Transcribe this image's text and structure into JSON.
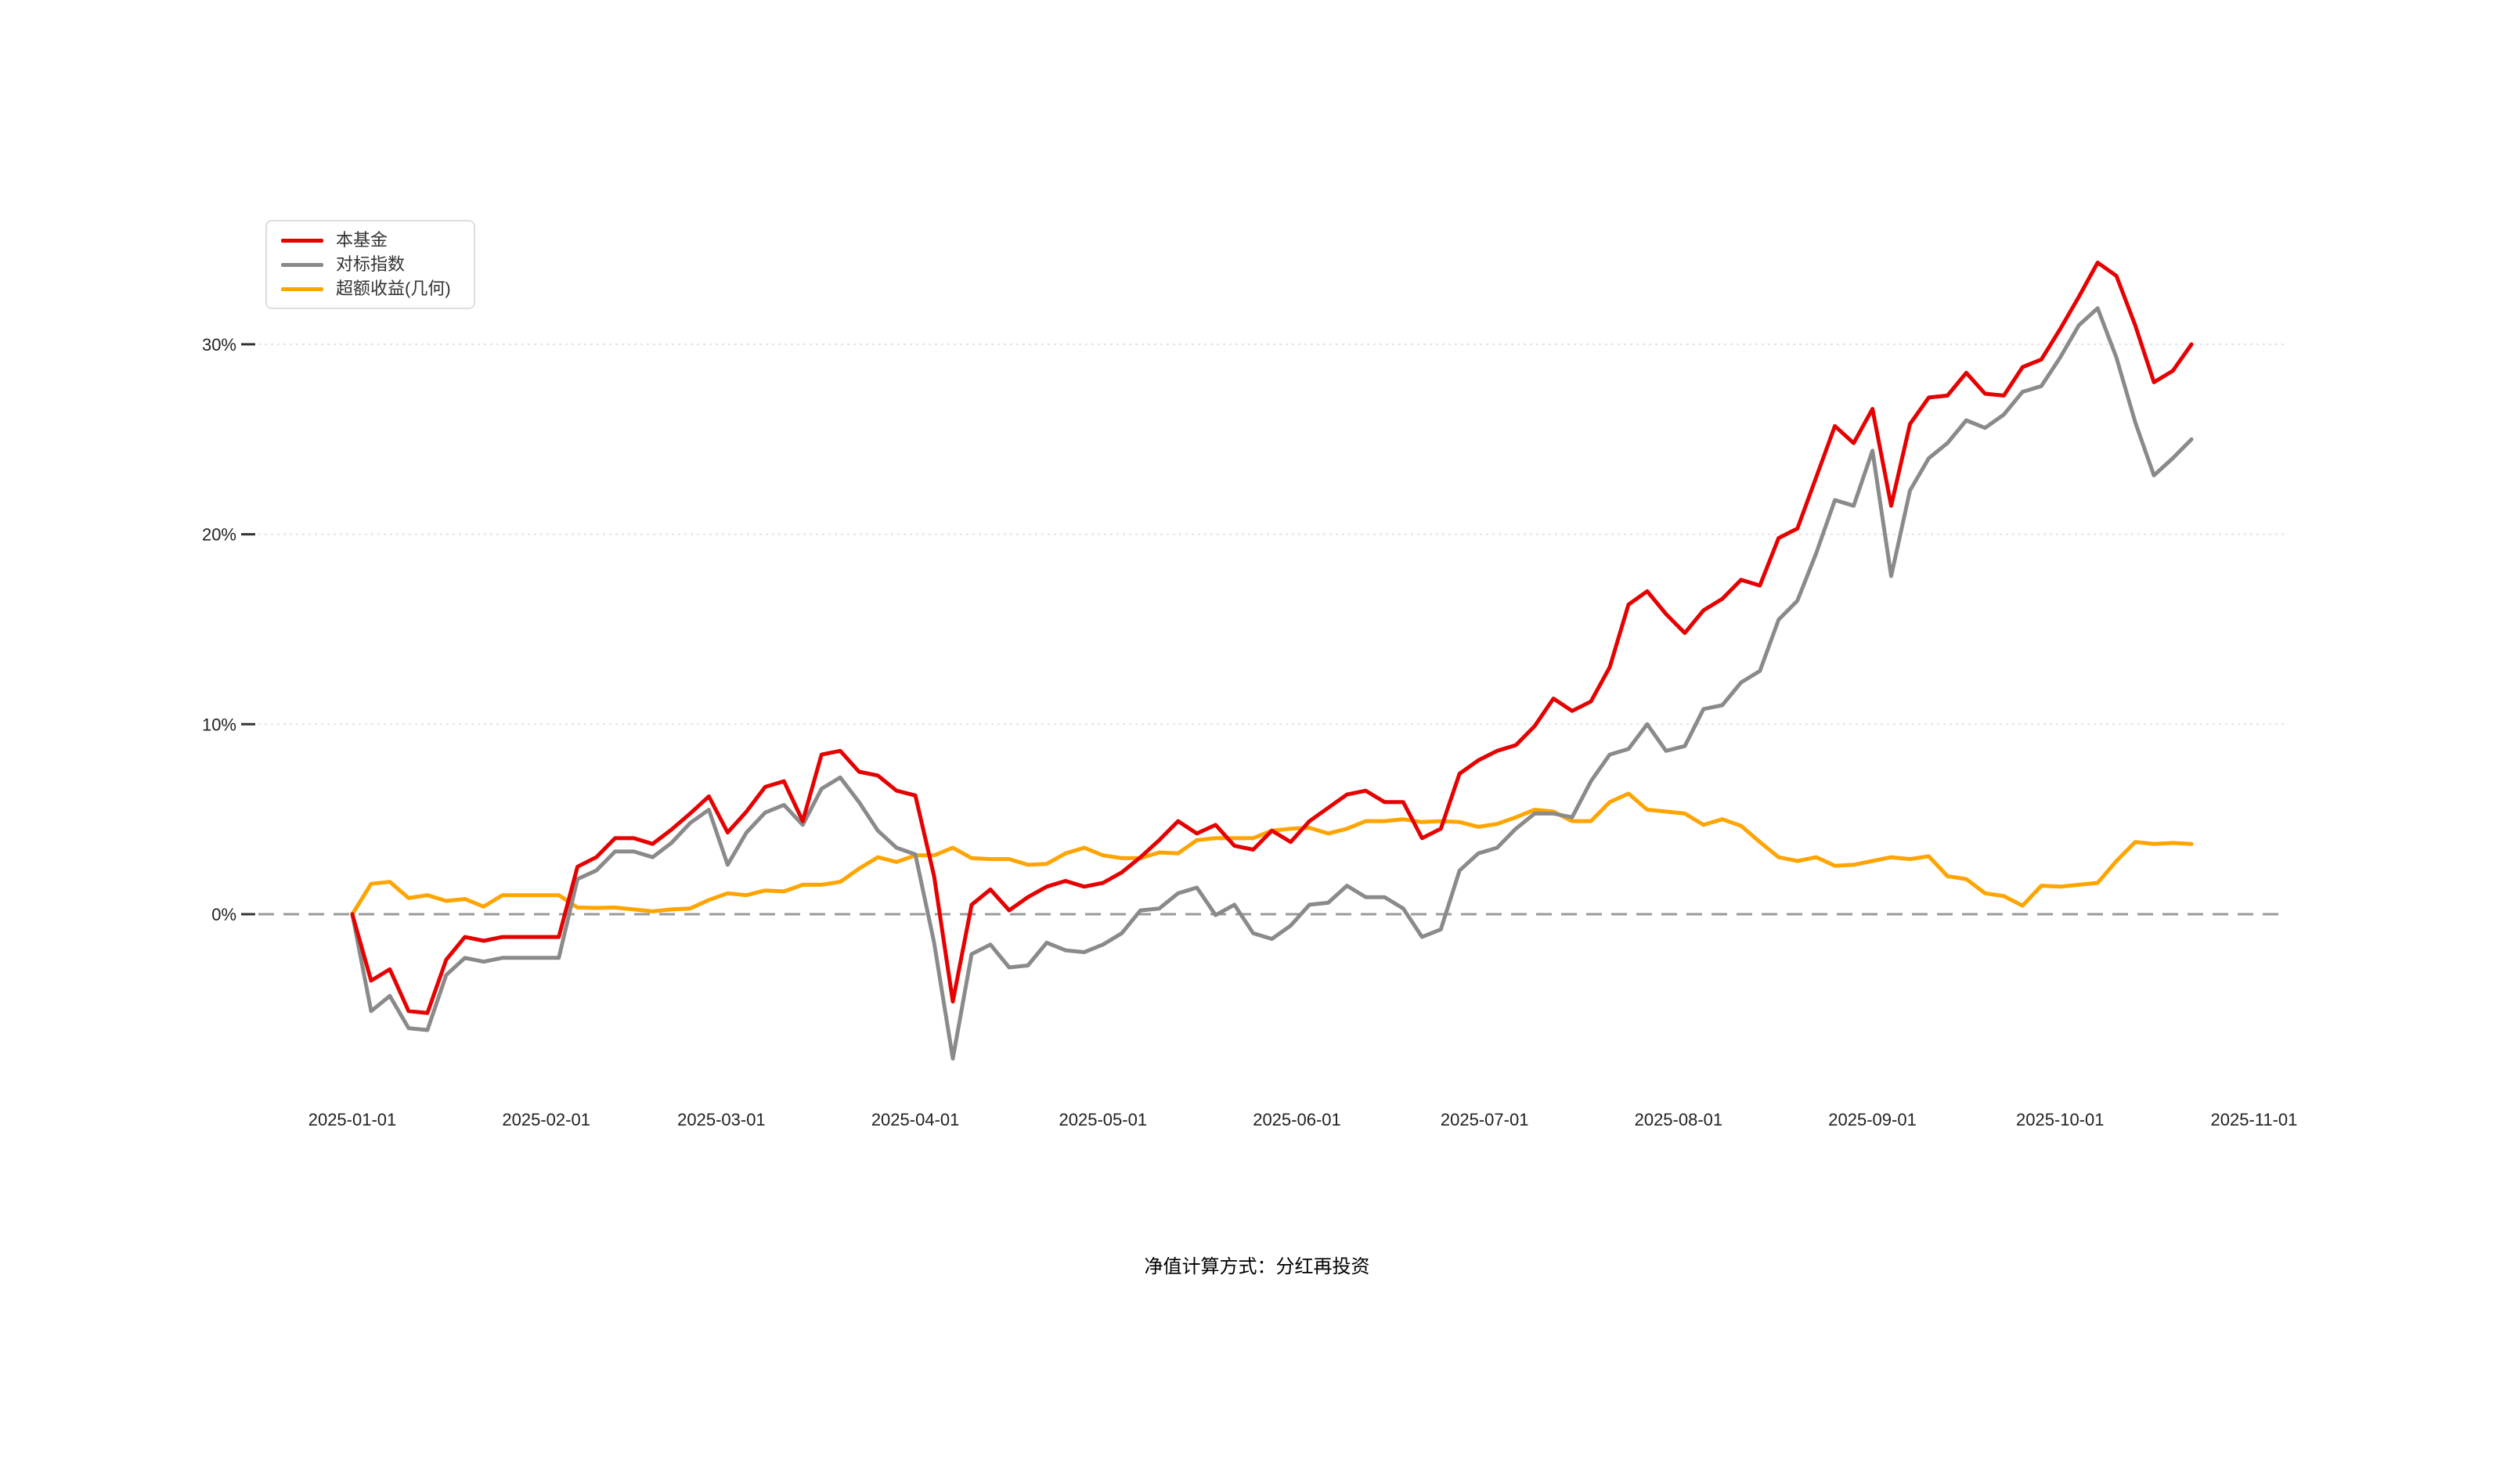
{
  "chart_data": {
    "type": "line",
    "title": "",
    "footnote": "净值计算方式：分红再投资",
    "legend_position": "top-left",
    "grid_on": true,
    "colors": {
      "fund": "#e60000",
      "benchmark": "#8a8a8a",
      "excess": "#ffa400",
      "zero_line": "#999999",
      "grid_line": "#e3e3e3",
      "axis_tick": "#333333",
      "axis_text": "#222222"
    },
    "x_axis": {
      "start_date": "2025-01-01",
      "tick_labels": [
        "2025-01-01",
        "2025-02-01",
        "2025-03-01",
        "2025-04-01",
        "2025-05-01",
        "2025-06-01",
        "2025-07-01",
        "2025-08-01",
        "2025-09-01",
        "2025-10-01",
        "2025-11-01"
      ],
      "tick_days": [
        0,
        31,
        59,
        90,
        120,
        151,
        181,
        212,
        243,
        273,
        304
      ],
      "last_data_day": 294
    },
    "y_axis": {
      "unit": "%",
      "range": [
        -8.5,
        35.5
      ],
      "ticks": [
        {
          "label": "30%",
          "value": 30
        },
        {
          "label": "20%",
          "value": 20
        },
        {
          "label": "10%",
          "value": 10
        },
        {
          "label": "0%",
          "value": 0
        }
      ]
    },
    "series": [
      {
        "name": "本基金",
        "color": "#e60000",
        "start_day": 0,
        "step_days": 3,
        "values": [
          0,
          -3.5,
          -2.9,
          -5.1,
          -5.2,
          -2.4,
          -1.2,
          -1.4,
          -1.2,
          -1.2,
          -1.2,
          -1.2,
          2.5,
          3.0,
          4.0,
          4.0,
          3.7,
          4.45,
          5.3,
          6.2,
          4.3,
          5.4,
          6.7,
          7.0,
          4.9,
          8.4,
          8.6,
          7.5,
          7.3,
          6.5,
          6.25,
          2.0,
          -4.6,
          0.5,
          1.3,
          0.2,
          0.9,
          1.45,
          1.75,
          1.45,
          1.65,
          2.2,
          3.0,
          3.9,
          4.9,
          4.25,
          4.7,
          3.6,
          3.4,
          4.4,
          3.8,
          4.9,
          5.6,
          6.3,
          6.5,
          5.9,
          5.9,
          4.0,
          4.5,
          7.4,
          8.1,
          8.6,
          8.9,
          9.9,
          11.35,
          10.7,
          11.2,
          13.0,
          16.3,
          17.0,
          15.8,
          14.8,
          16.0,
          16.6,
          17.6,
          17.3,
          19.8,
          20.3,
          23.0,
          25.7,
          24.8,
          26.6,
          21.5,
          25.8,
          27.2,
          27.3,
          28.5,
          27.4,
          27.3,
          28.8,
          29.2,
          30.8,
          32.5,
          34.3,
          33.6,
          31.0,
          28.0,
          28.6,
          30.0
        ]
      },
      {
        "name": "对标指数",
        "color": "#8a8a8a",
        "start_day": 0,
        "step_days": 3,
        "values": [
          0,
          -5.1,
          -4.3,
          -6.0,
          -6.1,
          -3.2,
          -2.3,
          -2.5,
          -2.3,
          -2.3,
          -2.3,
          -2.3,
          1.85,
          2.3,
          3.3,
          3.3,
          3.0,
          3.75,
          4.8,
          5.5,
          2.6,
          4.3,
          5.35,
          5.75,
          4.7,
          6.6,
          7.2,
          5.9,
          4.4,
          3.5,
          3.15,
          -1.5,
          -7.6,
          -2.1,
          -1.6,
          -2.8,
          -2.7,
          -1.5,
          -1.9,
          -2.0,
          -1.6,
          -1.0,
          0.2,
          0.3,
          1.1,
          1.4,
          -0.05,
          0.5,
          -1.0,
          -1.3,
          -0.6,
          0.5,
          0.6,
          1.5,
          0.9,
          0.9,
          0.3,
          -1.2,
          -0.8,
          2.3,
          3.2,
          3.5,
          4.5,
          5.3,
          5.3,
          5.1,
          7.0,
          8.4,
          8.7,
          10.0,
          8.6,
          8.85,
          10.8,
          11.0,
          12.2,
          12.8,
          15.5,
          16.5,
          19.0,
          21.8,
          21.5,
          24.4,
          17.8,
          22.3,
          24.0,
          24.8,
          26.0,
          25.6,
          26.3,
          27.5,
          27.8,
          29.3,
          31.0,
          31.9,
          29.3,
          25.9,
          23.1,
          24.0,
          25.0
        ]
      },
      {
        "name": "超额收益(几何)",
        "color": "#ffa400",
        "start_day": 0,
        "step_days": 3,
        "values": [
          0,
          1.6,
          1.7,
          0.85,
          1.0,
          0.7,
          0.8,
          0.4,
          1.0,
          1.0,
          1.0,
          1.0,
          0.35,
          0.33,
          0.35,
          0.25,
          0.15,
          0.25,
          0.3,
          0.75,
          1.1,
          1.0,
          1.25,
          1.2,
          1.55,
          1.55,
          1.7,
          2.4,
          3.0,
          2.75,
          3.1,
          3.1,
          3.5,
          2.95,
          2.9,
          2.9,
          2.6,
          2.65,
          3.2,
          3.5,
          3.1,
          2.95,
          2.95,
          3.25,
          3.2,
          3.9,
          4.0,
          4.0,
          4.0,
          4.4,
          4.5,
          4.55,
          4.25,
          4.5,
          4.9,
          4.9,
          5.0,
          4.85,
          4.9,
          4.85,
          4.6,
          4.75,
          5.1,
          5.5,
          5.4,
          4.9,
          4.9,
          5.9,
          6.35,
          5.5,
          5.4,
          5.3,
          4.7,
          5.0,
          4.65,
          3.8,
          3.0,
          2.8,
          3.0,
          2.55,
          2.6,
          2.8,
          3.0,
          2.9,
          3.05,
          2.0,
          1.85,
          1.1,
          0.95,
          0.45,
          1.5,
          1.45,
          1.55,
          1.65,
          2.8,
          3.8,
          3.7,
          3.75,
          3.7
        ]
      }
    ]
  }
}
